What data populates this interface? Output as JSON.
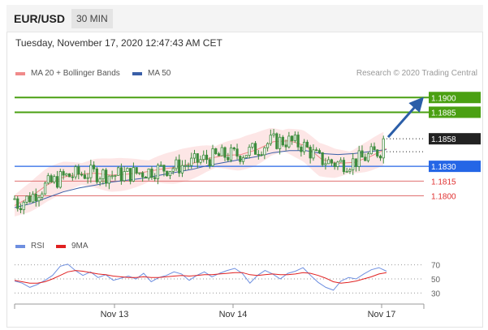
{
  "header": {
    "symbol": "EUR/USD",
    "timeframe": "30 MIN"
  },
  "timestamp": "Tuesday, November 17, 2020 12:47:43 AM CET",
  "legend": {
    "items": [
      {
        "label": "MA 20 + Bollinger Bands",
        "color": "#f08a8a"
      },
      {
        "label": "MA 50",
        "color": "#3a5fa8"
      }
    ],
    "credit": "Research © 2020 Trading Central"
  },
  "rsi_legend": {
    "items": [
      {
        "label": "RSI",
        "color": "#6e8fe0"
      },
      {
        "label": "9MA",
        "color": "#e02020"
      }
    ]
  },
  "colors": {
    "candle": "#3d8c3d",
    "bollinger_fill": "#fde3e3",
    "target_line": "#4aa012",
    "current_tag": "#222222",
    "pivot_line": "#2566e6",
    "support_line": "#e07070",
    "arrow": "#2b5ea8"
  },
  "chart_data": [
    {
      "type": "candlestick",
      "title": "",
      "x_tick_labels": [
        "Nov 13",
        "Nov 14",
        "Nov 17"
      ],
      "ylim": [
        1.176,
        1.192
      ],
      "ohlc_shape_anchor": {
        "start_close": 1.1797,
        "end_close": 1.1858,
        "high": 1.1874,
        "low": 1.1779
      },
      "ma20_close_path": [
        1.179,
        1.1799,
        1.1811,
        1.1819,
        1.1822,
        1.1823,
        1.1821,
        1.1822,
        1.1824,
        1.1827,
        1.1829,
        1.1833,
        1.1838,
        1.1841,
        1.1842,
        1.1847,
        1.1855,
        1.1856,
        1.1851,
        1.1837,
        1.1833,
        1.1834,
        1.184,
        1.1848
      ],
      "ma50_close_path": [
        1.1788,
        1.1792,
        1.1798,
        1.1804,
        1.1808,
        1.1811,
        1.1814,
        1.1816,
        1.1818,
        1.1821,
        1.1824,
        1.1827,
        1.1831,
        1.1834,
        1.1837,
        1.184,
        1.1844,
        1.1846,
        1.1846,
        1.1843,
        1.1842,
        1.1843,
        1.1845,
        1.1847
      ],
      "levels": [
        {
          "value": 1.19,
          "label": "1.1900",
          "kind": "target"
        },
        {
          "value": 1.1885,
          "label": "1.1885",
          "kind": "target"
        },
        {
          "value": 1.1858,
          "label": "1.1858",
          "kind": "current"
        },
        {
          "value": 1.183,
          "label": "1.1830",
          "kind": "pivot"
        },
        {
          "value": 1.1815,
          "label": "1.1815",
          "kind": "support"
        },
        {
          "value": 1.18,
          "label": "1.1800",
          "kind": "support"
        }
      ]
    },
    {
      "type": "line",
      "title": "",
      "series_names": [
        "RSI",
        "9MA"
      ],
      "ylim": [
        20,
        80
      ],
      "yticks": [
        {
          "value": 70,
          "label": "70"
        },
        {
          "value": 50,
          "label": "50"
        },
        {
          "value": 30,
          "label": "30"
        }
      ],
      "rsi_values": [
        47,
        44,
        38,
        42,
        48,
        55,
        68,
        71,
        62,
        55,
        60,
        52,
        56,
        48,
        51,
        54,
        50,
        58,
        46,
        52,
        55,
        60,
        57,
        48,
        55,
        60,
        53,
        58,
        62,
        65,
        58,
        44,
        55,
        62,
        57,
        50,
        58,
        61,
        66,
        55,
        45,
        38,
        34,
        47,
        52,
        50,
        57,
        63,
        66,
        61
      ],
      "ma_values": [
        48,
        46,
        44,
        44,
        46,
        50,
        55,
        60,
        62,
        61,
        59,
        57,
        56,
        54,
        53,
        52,
        52,
        53,
        52,
        52,
        53,
        54,
        55,
        54,
        55,
        56,
        56,
        57,
        58,
        59,
        59,
        56,
        55,
        56,
        57,
        56,
        56,
        57,
        59,
        58,
        55,
        51,
        46,
        44,
        45,
        47,
        50,
        53,
        57,
        59
      ]
    }
  ]
}
